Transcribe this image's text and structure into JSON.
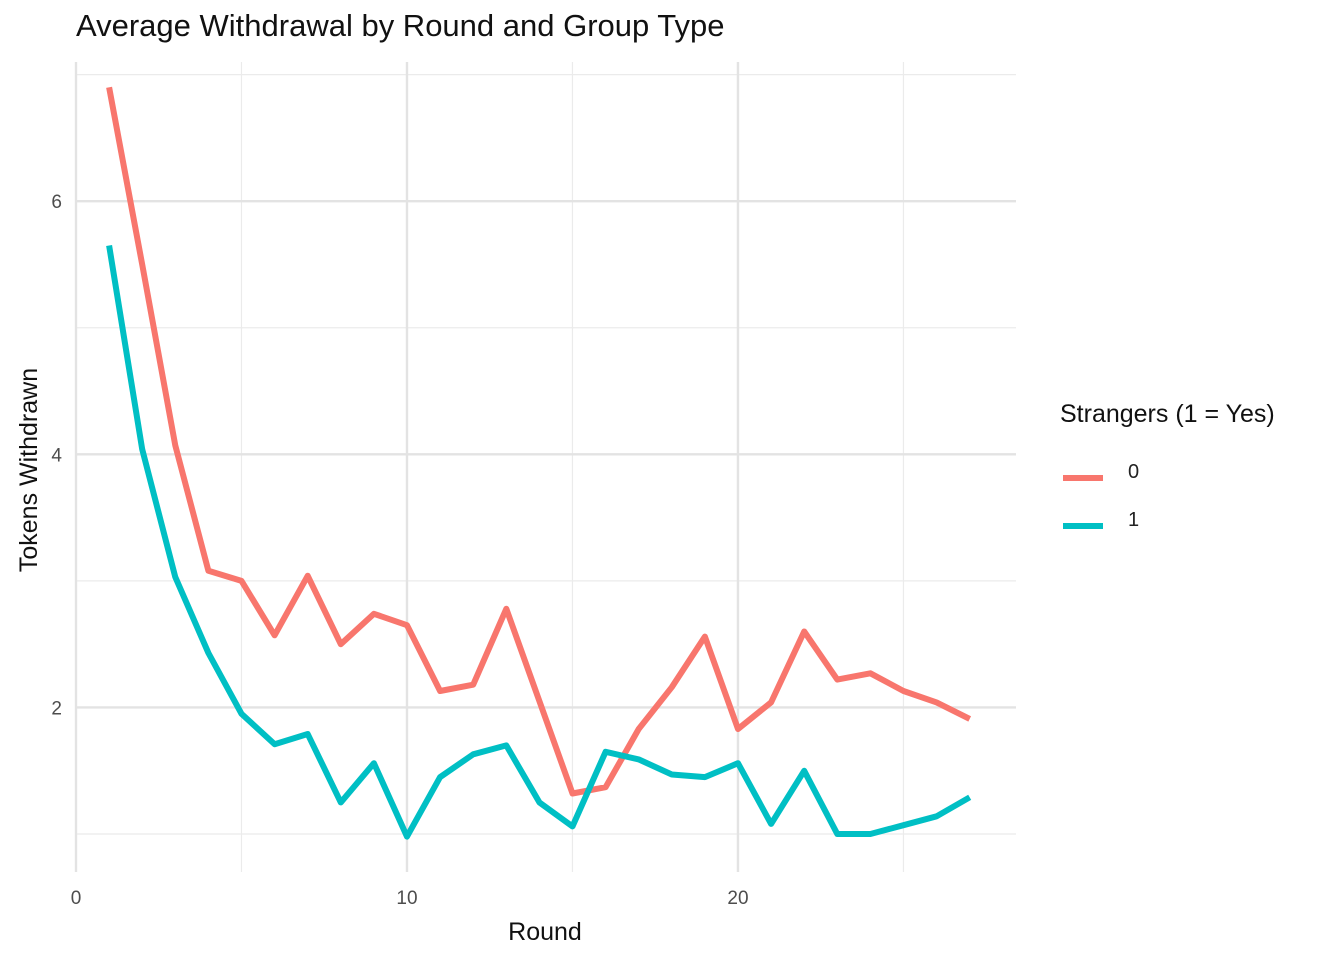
{
  "chart_data": {
    "type": "line",
    "title": "Average Withdrawal by Round and Group Type",
    "xlabel": "Round",
    "ylabel": "Tokens Withdrawn",
    "xlim": [
      0,
      28.4
    ],
    "ylim": [
      0.7,
      7.1
    ],
    "x_ticks": [
      0,
      10,
      20
    ],
    "y_ticks": [
      2,
      4,
      6
    ],
    "grid": true,
    "legend": {
      "title": "Strangers (1 = Yes)",
      "placement": "right"
    },
    "x": [
      1,
      2,
      3,
      4,
      5,
      6,
      7,
      8,
      9,
      10,
      11,
      12,
      13,
      14,
      15,
      16,
      17,
      18,
      19,
      20,
      21,
      22,
      23,
      24,
      25,
      26,
      27
    ],
    "series": [
      {
        "name": "0",
        "color": "#F8766D",
        "values": [
          6.9,
          5.5,
          4.07,
          3.08,
          3.0,
          2.57,
          3.04,
          2.5,
          2.74,
          2.65,
          2.13,
          2.18,
          2.78,
          2.05,
          1.32,
          1.37,
          1.83,
          2.16,
          2.56,
          1.83,
          2.04,
          2.6,
          2.22,
          2.27,
          2.13,
          2.04,
          1.91
        ]
      },
      {
        "name": "1",
        "color": "#00BFC4",
        "values": [
          5.65,
          4.04,
          3.03,
          2.43,
          1.95,
          1.71,
          1.79,
          1.25,
          1.56,
          0.98,
          1.45,
          1.63,
          1.7,
          1.25,
          1.06,
          1.65,
          1.59,
          1.47,
          1.45,
          1.56,
          1.08,
          1.5,
          1.0,
          1.0,
          1.07,
          1.14,
          1.29
        ]
      }
    ]
  }
}
